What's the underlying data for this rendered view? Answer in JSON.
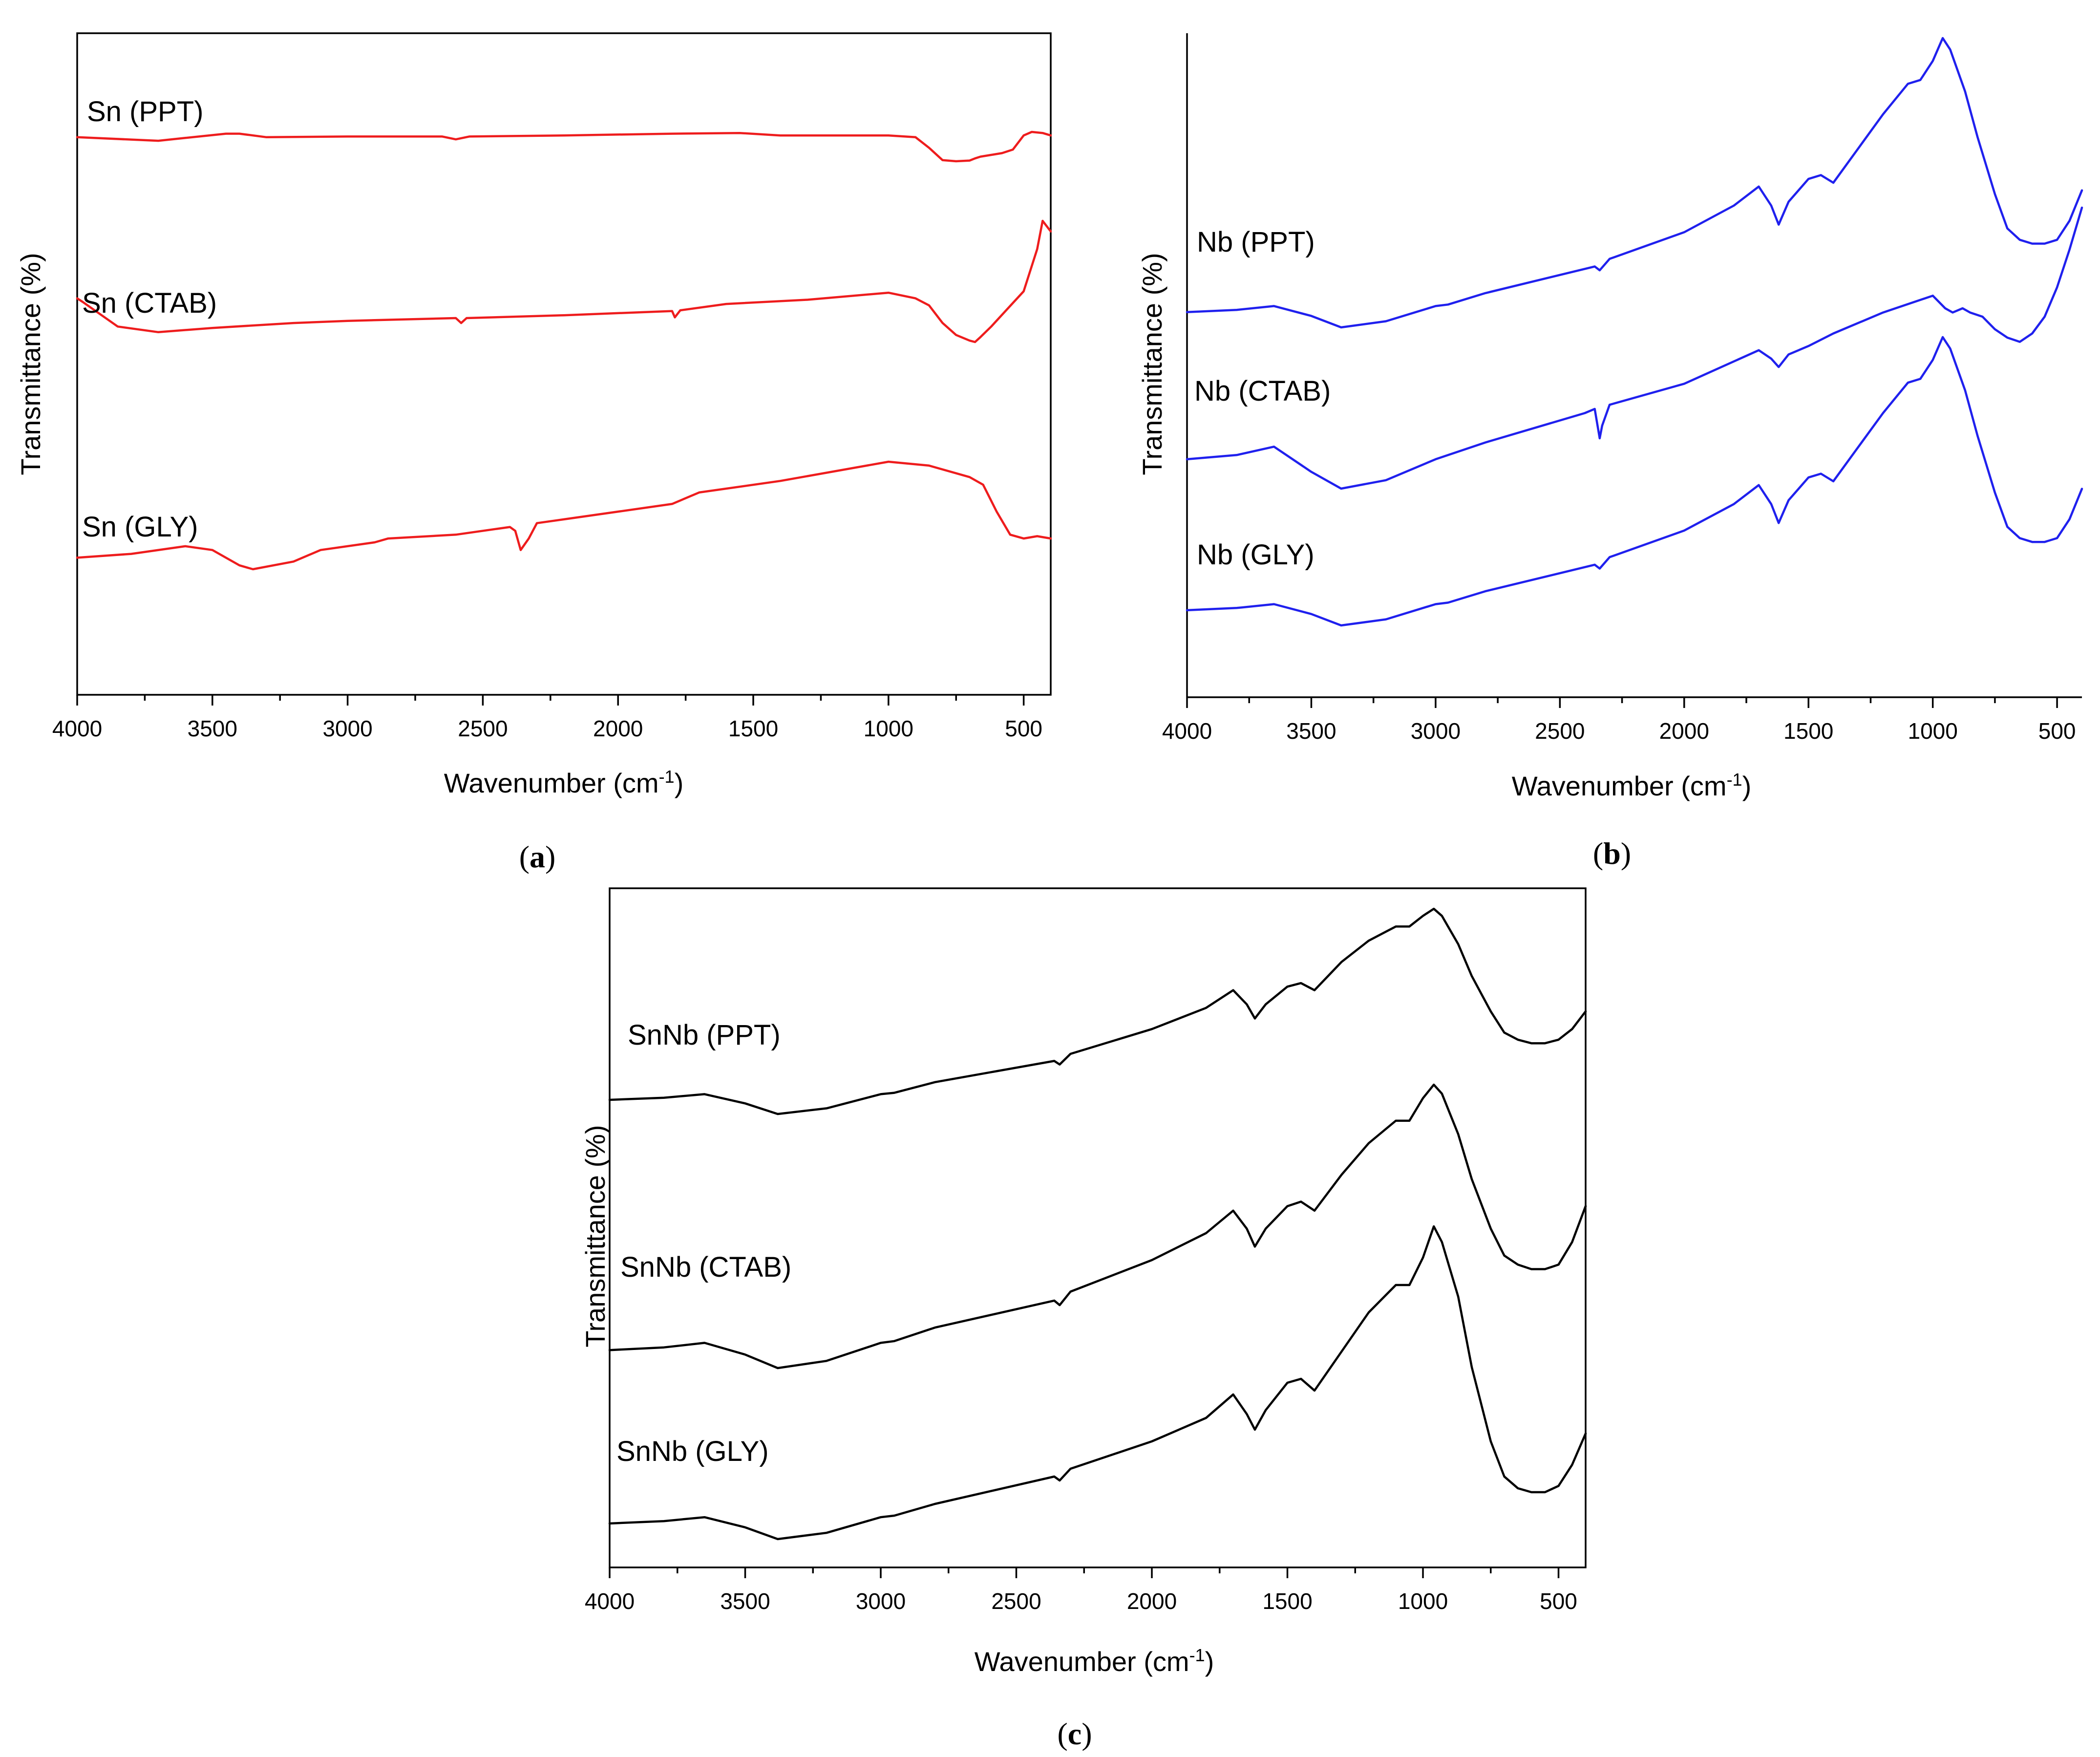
{
  "chart_data": [
    {
      "panel": "a",
      "panel_label": "a",
      "type": "line",
      "title": "",
      "xlabel_main": "Wavenumber (cm",
      "xlabel_sup": "-1",
      "xlabel_close": ")",
      "ylabel": "Transmittance (%)",
      "xlim": [
        4000,
        400
      ],
      "x_reversed": true,
      "y_ticks_shown": false,
      "xticks": [
        4000,
        3500,
        3000,
        2500,
        2000,
        1500,
        1000,
        500
      ],
      "xtick_labels": [
        "4000",
        "3500",
        "3000",
        "2500",
        "2000",
        "1500",
        "1000",
        "500"
      ],
      "color": "#ee1c1c",
      "ylim": [
        0,
        100
      ],
      "series": [
        {
          "name": "Sn (PPT)",
          "x": [
            4000,
            3700,
            3600,
            3450,
            3400,
            3300,
            3000,
            2650,
            2600,
            2550,
            2200,
            1800,
            1550,
            1400,
            1000,
            900,
            850,
            800,
            750,
            700,
            680,
            660,
            620,
            580,
            540,
            500,
            470,
            430,
            400
          ],
          "values": [
            82.0,
            81.0,
            81.8,
            83.0,
            83.0,
            82.0,
            82.2,
            82.2,
            81.4,
            82.2,
            82.5,
            83.0,
            83.2,
            82.5,
            82.5,
            82.0,
            79.0,
            75.5,
            75.2,
            75.4,
            76.0,
            76.5,
            77.0,
            77.5,
            78.5,
            82.5,
            83.5,
            83.2,
            82.5
          ]
        },
        {
          "name": "Sn (CTAB)",
          "x": [
            4000,
            3980,
            3850,
            3700,
            3500,
            3200,
            3000,
            2600,
            2580,
            2560,
            2200,
            1800,
            1790,
            1770,
            1600,
            1300,
            1000,
            900,
            850,
            800,
            750,
            700,
            680,
            660,
            620,
            560,
            500,
            450,
            430,
            400
          ],
          "values": [
            62.0,
            61.5,
            58.0,
            57.2,
            57.8,
            58.5,
            58.8,
            59.2,
            58.5,
            59.2,
            59.6,
            60.2,
            59.3,
            60.3,
            61.2,
            61.8,
            62.8,
            62.0,
            61.0,
            58.5,
            56.8,
            56.0,
            55.8,
            56.5,
            58.0,
            60.5,
            63.0,
            69.0,
            73.0,
            71.5
          ]
        },
        {
          "name": "Sn (GLY)",
          "x": [
            4000,
            3800,
            3600,
            3500,
            3400,
            3350,
            3200,
            3100,
            2900,
            2850,
            2600,
            2400,
            2380,
            2360,
            2330,
            2300,
            2200,
            1800,
            1700,
            1400,
            1000,
            850,
            700,
            650,
            600,
            550,
            500,
            450,
            400
          ],
          "values": [
            19.0,
            19.5,
            20.5,
            20.0,
            18.0,
            17.5,
            18.5,
            20.0,
            21.0,
            21.5,
            22.0,
            23.0,
            22.5,
            20.0,
            21.5,
            23.5,
            24.0,
            26.0,
            27.5,
            29.0,
            31.5,
            31.0,
            29.5,
            28.5,
            25.0,
            22.0,
            21.5,
            21.8,
            21.5
          ]
        }
      ],
      "labels": [
        "Sn (PPT)",
        "Sn (CTAB)",
        "Sn (GLY)"
      ]
    },
    {
      "panel": "b",
      "panel_label": "b",
      "type": "line",
      "title": "",
      "xlabel_main": "Wavenumber (cm",
      "xlabel_sup": "-1",
      "xlabel_close": ")",
      "ylabel": "Transmittance (%)",
      "xlim": [
        4000,
        400
      ],
      "x_reversed": true,
      "y_ticks_shown": false,
      "xticks": [
        4000,
        3500,
        3000,
        2500,
        2000,
        1500,
        1000,
        500
      ],
      "xtick_labels": [
        "4000",
        "3500",
        "3000",
        "2500",
        "2000",
        "1500",
        "1000",
        "500"
      ],
      "color": "#2020ee",
      "ylim": [
        0,
        100
      ],
      "series": [
        {
          "name": "Nb (PPT)",
          "x": [
            4000,
            3800,
            3650,
            3500,
            3380,
            3200,
            3000,
            2950,
            2800,
            2360,
            2340,
            2300,
            2000,
            1800,
            1700,
            1650,
            1620,
            1580,
            1500,
            1450,
            1400,
            1300,
            1200,
            1100,
            1050,
            1000,
            960,
            930,
            870,
            820,
            750,
            700,
            650,
            600,
            550,
            500,
            450,
            400
          ],
          "values": [
            63.0,
            63.3,
            63.8,
            62.5,
            61.0,
            61.8,
            63.8,
            64.0,
            65.5,
            69.0,
            68.5,
            70.0,
            73.5,
            77.0,
            79.5,
            77.0,
            74.5,
            77.5,
            80.5,
            81.0,
            80.0,
            84.5,
            89.0,
            93.0,
            93.5,
            96.0,
            99.0,
            97.5,
            92.0,
            86.0,
            78.5,
            74.0,
            72.5,
            72.0,
            72.0,
            72.5,
            75.0,
            79.0
          ]
        },
        {
          "name": "Nb (CTAB)",
          "x": [
            4000,
            3800,
            3650,
            3500,
            3380,
            3200,
            3000,
            2800,
            2400,
            2360,
            2340,
            2330,
            2300,
            2000,
            1700,
            1650,
            1620,
            1580,
            1500,
            1400,
            1200,
            1000,
            950,
            920,
            880,
            850,
            800,
            750,
            700,
            650,
            600,
            550,
            500,
            450,
            400
          ],
          "values": [
            42.5,
            43.0,
            44.0,
            41.0,
            39.0,
            40.0,
            42.5,
            44.5,
            48.0,
            48.5,
            45.0,
            46.5,
            49.0,
            51.5,
            55.5,
            54.5,
            53.5,
            55.0,
            56.0,
            57.5,
            60.0,
            62.0,
            60.5,
            60.0,
            60.5,
            60.0,
            59.5,
            58.0,
            57.0,
            56.5,
            57.5,
            59.5,
            63.0,
            67.5,
            72.5
          ]
        },
        {
          "name": "Nb (GLY)",
          "x": [
            4000,
            3800,
            3650,
            3500,
            3380,
            3200,
            3000,
            2950,
            2800,
            2360,
            2340,
            2300,
            2000,
            1800,
            1700,
            1650,
            1620,
            1580,
            1500,
            1450,
            1400,
            1300,
            1200,
            1100,
            1050,
            1000,
            960,
            930,
            870,
            820,
            750,
            700,
            650,
            600,
            550,
            500,
            450,
            400
          ],
          "values": [
            17.0,
            17.3,
            17.8,
            16.5,
            15.0,
            15.8,
            17.8,
            18.0,
            19.5,
            23.0,
            22.5,
            24.0,
            27.5,
            31.0,
            33.5,
            31.0,
            28.5,
            31.5,
            34.5,
            35.0,
            34.0,
            38.5,
            43.0,
            47.0,
            47.5,
            50.0,
            53.0,
            51.5,
            46.0,
            40.0,
            32.5,
            28.0,
            26.5,
            26.0,
            26.0,
            26.5,
            29.0,
            33.0
          ]
        }
      ],
      "labels": [
        "Nb (PPT)",
        "Nb (CTAB)",
        "Nb (GLY)"
      ]
    },
    {
      "panel": "c",
      "panel_label": "c",
      "type": "line",
      "title": "",
      "xlabel_main": "Wavenumber (cm",
      "xlabel_sup": "-1",
      "xlabel_close": ")",
      "ylabel": "Transmittance (%)",
      "xlim": [
        4000,
        400
      ],
      "x_reversed": true,
      "y_ticks_shown": false,
      "xticks": [
        4000,
        3500,
        3000,
        2500,
        2000,
        1500,
        1000,
        500
      ],
      "xtick_labels": [
        "4000",
        "3500",
        "3000",
        "2500",
        "2000",
        "1500",
        "1000",
        "500"
      ],
      "color": "#000000",
      "ylim": [
        0,
        100
      ],
      "series": [
        {
          "name": "SnNb (PPT)",
          "x": [
            4000,
            3800,
            3650,
            3500,
            3380,
            3200,
            3000,
            2950,
            2800,
            2360,
            2340,
            2300,
            2000,
            1800,
            1700,
            1650,
            1620,
            1580,
            1500,
            1450,
            1400,
            1300,
            1200,
            1100,
            1050,
            1000,
            960,
            930,
            870,
            820,
            750,
            700,
            650,
            600,
            550,
            500,
            450,
            400
          ],
          "values": [
            73.0,
            73.3,
            73.8,
            72.5,
            71.0,
            71.8,
            73.8,
            74.0,
            75.5,
            78.5,
            78.0,
            79.5,
            83.0,
            86.0,
            88.5,
            86.5,
            84.5,
            86.5,
            89.0,
            89.5,
            88.5,
            92.5,
            95.5,
            97.5,
            97.5,
            99.0,
            100.0,
            99.0,
            95.0,
            90.5,
            85.5,
            82.5,
            81.5,
            81.0,
            81.0,
            81.5,
            83.0,
            85.5
          ]
        },
        {
          "name": "SnNb (CTAB)",
          "x": [
            4000,
            3800,
            3650,
            3500,
            3380,
            3200,
            3000,
            2950,
            2800,
            2360,
            2340,
            2300,
            2000,
            1800,
            1700,
            1650,
            1620,
            1580,
            1500,
            1450,
            1400,
            1300,
            1200,
            1100,
            1050,
            1000,
            960,
            930,
            870,
            820,
            750,
            700,
            650,
            600,
            550,
            500,
            450,
            400
          ],
          "values": [
            39.0,
            39.3,
            39.8,
            38.5,
            37.0,
            37.8,
            39.8,
            40.0,
            41.5,
            44.5,
            44.0,
            45.5,
            49.0,
            52.0,
            54.5,
            52.5,
            50.5,
            52.5,
            55.0,
            55.5,
            54.5,
            58.5,
            62.0,
            64.5,
            64.5,
            67.0,
            68.5,
            67.5,
            63.0,
            58.0,
            52.5,
            49.5,
            48.5,
            48.0,
            48.0,
            48.5,
            51.0,
            55.0
          ]
        },
        {
          "name": "SnNb (GLY)",
          "x": [
            4000,
            3800,
            3650,
            3500,
            3380,
            3200,
            3000,
            2950,
            2800,
            2360,
            2340,
            2300,
            2000,
            1800,
            1700,
            1650,
            1620,
            1580,
            1500,
            1450,
            1400,
            1300,
            1200,
            1100,
            1050,
            1000,
            960,
            930,
            870,
            820,
            750,
            700,
            650,
            600,
            550,
            500,
            450,
            400
          ],
          "values": [
            10.0,
            10.3,
            10.8,
            9.5,
            8.0,
            8.8,
            10.8,
            11.0,
            12.5,
            16.0,
            15.5,
            17.0,
            20.5,
            23.5,
            26.5,
            24.0,
            22.0,
            24.5,
            28.0,
            28.5,
            27.0,
            32.0,
            37.0,
            40.5,
            40.5,
            44.0,
            48.0,
            46.0,
            39.0,
            30.0,
            20.5,
            16.0,
            14.5,
            14.0,
            14.0,
            14.8,
            17.5,
            21.5
          ]
        }
      ],
      "labels": [
        "SnNb (PPT)",
        "SnNb (CTAB)",
        "SnNb (GLY)"
      ]
    }
  ]
}
